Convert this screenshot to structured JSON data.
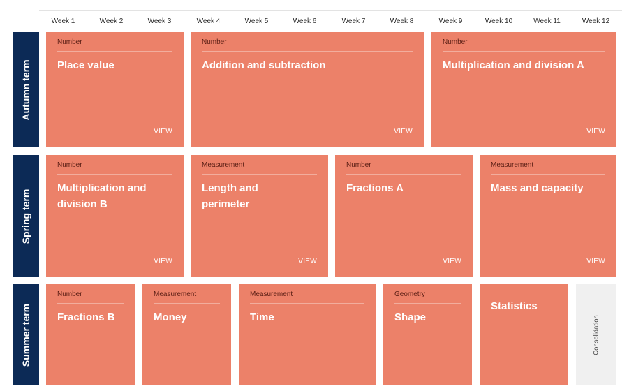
{
  "weeks": [
    "Week 1",
    "Week 2",
    "Week 3",
    "Week 4",
    "Week 5",
    "Week 6",
    "Week 7",
    "Week 8",
    "Week 9",
    "Week 10",
    "Week 11",
    "Week 12"
  ],
  "terms": {
    "autumn": {
      "label": "Autumn term",
      "blocks": [
        {
          "category": "Number",
          "title": "Place value",
          "action": "VIEW"
        },
        {
          "category": "Number",
          "title": "Addition and subtraction",
          "action": "VIEW"
        },
        {
          "category": "Number",
          "title": "Multiplication and division A",
          "action": "VIEW"
        }
      ]
    },
    "spring": {
      "label": "Spring term",
      "blocks": [
        {
          "category": "Number",
          "title": "Multiplication and division B",
          "action": "VIEW"
        },
        {
          "category": "Measurement",
          "title": "Length and perimeter",
          "action": "VIEW"
        },
        {
          "category": "Number",
          "title": "Fractions A",
          "action": "VIEW"
        },
        {
          "category": "Measurement",
          "title": "Mass and capacity",
          "action": "VIEW"
        }
      ]
    },
    "summer": {
      "label": "Summer term",
      "blocks": [
        {
          "category": "Number",
          "title": "Fractions B"
        },
        {
          "category": "Measurement",
          "title": "Money"
        },
        {
          "category": "Measurement",
          "title": "Time"
        },
        {
          "category": "Geometry",
          "title": "Shape"
        },
        {
          "category": "",
          "title": "Statistics"
        }
      ],
      "consolidation": "Consolidation"
    }
  },
  "colors": {
    "block": "#ec8169",
    "term_label": "#0c2a56",
    "consolidation": "#f0f0f0"
  }
}
